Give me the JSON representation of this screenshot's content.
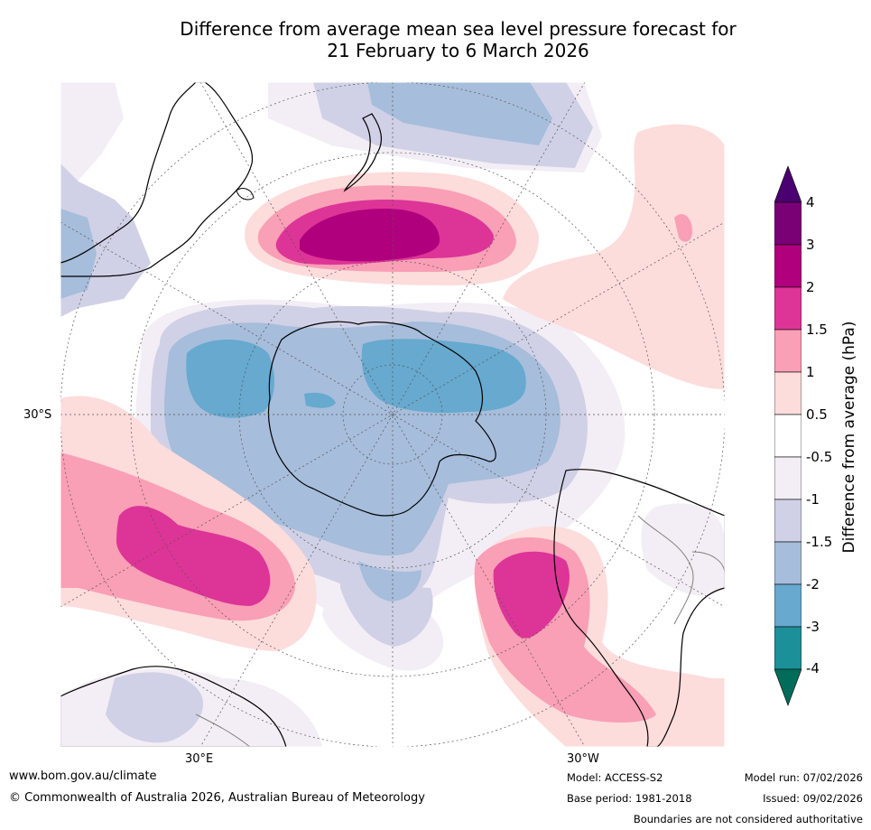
{
  "title": {
    "line1": "Difference from average mean sea level pressure forecast for",
    "line2": "21 February to 6 March 2026"
  },
  "map": {
    "projection": "south-polar-stereographic",
    "labels": {
      "lat_30s": "30°S",
      "lon_30e": "30°E",
      "lon_30w": "30°W"
    }
  },
  "colorbar": {
    "title": "Difference from average (hPa)",
    "ticks": [
      "4",
      "3",
      "2",
      "1.5",
      "1",
      "0.5",
      "-0.5",
      "-1",
      "-1.5",
      "-2",
      "-3",
      "-4"
    ],
    "colors": {
      "above_4": "#4a0070",
      "3_to_4": "#7a0076",
      "2_to_3": "#b1007d",
      "1.5_to_2": "#dd3497",
      "1_to_1.5": "#f99fb6",
      "0.5_to_1": "#fddcdc",
      "neutral": "#ffffff",
      "-1_to_-0.5": "#f3edf5",
      "-1.5_to_-1": "#d0d1e6",
      "-2_to_-1.5": "#a6bddb",
      "-3_to_-2": "#67a9cf",
      "-4_to_-3": "#1c9099",
      "below_-4": "#016c59"
    }
  },
  "footer": {
    "url": "www.bom.gov.au/climate",
    "copyright": "© Commonwealth of Australia 2026, Australian Bureau of Meteorology",
    "model": "Model: ACCESS-S2",
    "base_period": "Base period: 1981-2018",
    "model_run": "Model run: 07/02/2026",
    "issued": "Issued: 09/02/2026",
    "disclaimer": "Boundaries are not considered authoritative"
  }
}
